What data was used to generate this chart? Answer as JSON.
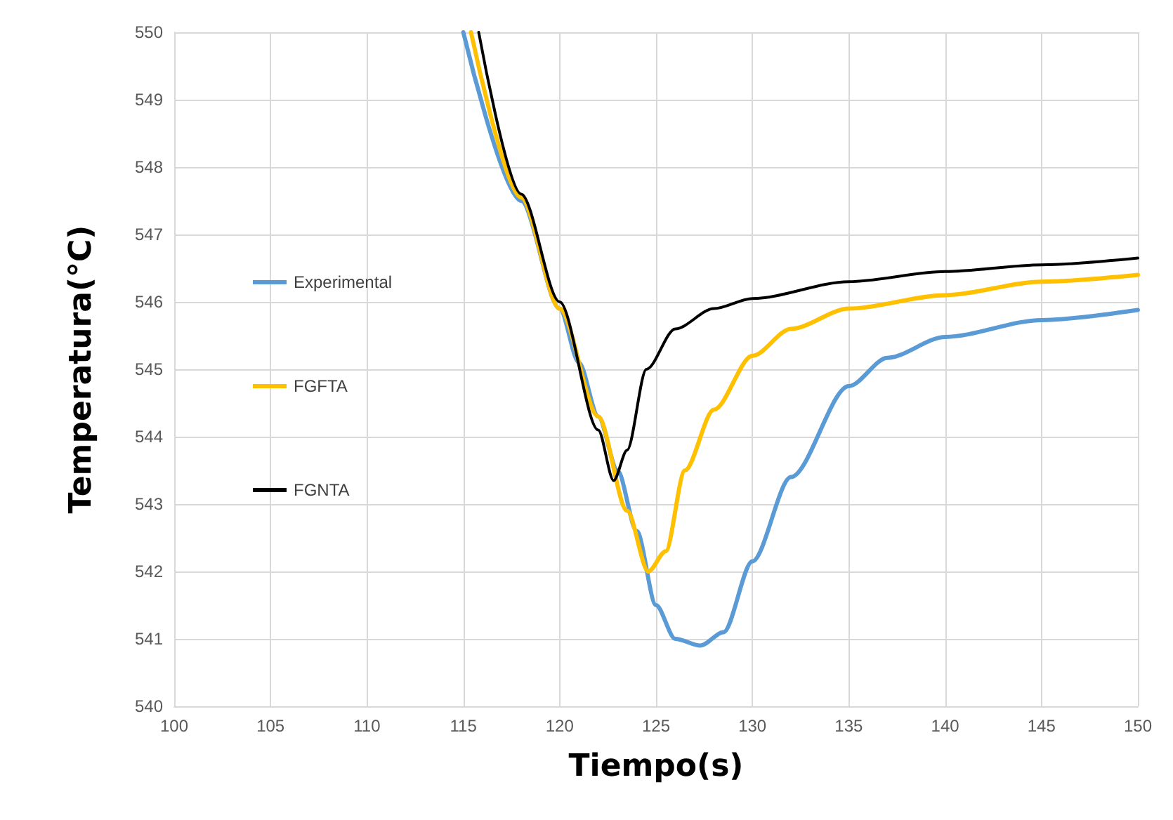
{
  "chart_data": {
    "type": "line",
    "xlabel": "Tiempo(s)",
    "ylabel": "Temperatura(°C)",
    "xlim": [
      100,
      150
    ],
    "ylim": [
      540,
      550
    ],
    "xticks": [
      100,
      105,
      110,
      115,
      120,
      125,
      130,
      135,
      140,
      145,
      150
    ],
    "yticks": [
      540,
      541,
      542,
      543,
      544,
      545,
      546,
      547,
      548,
      549,
      550
    ],
    "grid": true,
    "legend": "left",
    "marker": "none",
    "line_style": "solid",
    "series": [
      {
        "name": "Experimental",
        "color": "#5b9bd5",
        "x": [
          115,
          118,
          120,
          121,
          122,
          123,
          124,
          125,
          126,
          127.3,
          128.5,
          130,
          132,
          135,
          137,
          140,
          145,
          150
        ],
        "values": [
          550,
          547.5,
          545.9,
          545.1,
          544.3,
          543.5,
          542.6,
          541.5,
          541.0,
          540.9,
          541.1,
          542.15,
          543.4,
          544.75,
          545.17,
          545.48,
          545.73,
          545.88
        ]
      },
      {
        "name": "FGFTA",
        "color": "#ffc000",
        "x": [
          115.4,
          118,
          120,
          122,
          123.5,
          124.6,
          125.5,
          126.5,
          128,
          130,
          132,
          135,
          140,
          145,
          150
        ],
        "values": [
          550,
          547.55,
          545.9,
          544.3,
          542.9,
          542.0,
          542.3,
          543.5,
          544.4,
          545.2,
          545.6,
          545.9,
          546.1,
          546.3,
          546.4
        ]
      },
      {
        "name": "FGNTA",
        "color": "#000000",
        "x": [
          115.8,
          118,
          120,
          122,
          122.8,
          123.5,
          124.5,
          126,
          128,
          130,
          135,
          140,
          145,
          150
        ],
        "values": [
          550,
          547.6,
          546.0,
          544.1,
          543.35,
          543.8,
          545.0,
          545.6,
          545.9,
          546.05,
          546.3,
          546.45,
          546.55,
          546.65
        ]
      }
    ]
  }
}
